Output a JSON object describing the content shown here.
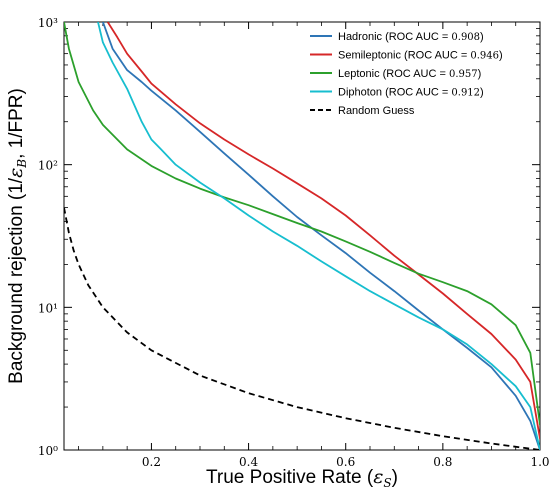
{
  "chart_data": {
    "type": "line",
    "xlabel": "True Positive Rate (εS)",
    "ylabel": "Background rejection (1/εB, 1/FPR)",
    "x_scale": "linear",
    "y_scale": "log",
    "xlim": [
      0.02,
      1.0
    ],
    "ylim": [
      1,
      1000
    ],
    "x_ticks": [
      0.2,
      0.4,
      0.6,
      0.8,
      1.0
    ],
    "x_tick_labels": [
      "0.2",
      "0.4",
      "0.6",
      "0.8",
      "1.0"
    ],
    "y_ticks": [
      1,
      10,
      100,
      1000
    ],
    "y_tick_labels": [
      "10⁰",
      "10¹",
      "10²",
      "10³"
    ],
    "grid": false,
    "legend_position": "top-right",
    "series": [
      {
        "name": "Hadronic (ROC AUC = 0.908)",
        "color": "#2e75b6",
        "style": "solid",
        "x": [
          0.1,
          0.12,
          0.15,
          0.18,
          0.2,
          0.25,
          0.3,
          0.35,
          0.4,
          0.45,
          0.5,
          0.55,
          0.6,
          0.65,
          0.7,
          0.75,
          0.8,
          0.85,
          0.9,
          0.95,
          0.98,
          1.0
        ],
        "y": [
          1000,
          650,
          460,
          380,
          330,
          240,
          170,
          120,
          85,
          60,
          43,
          32,
          24,
          17.5,
          13,
          9.5,
          7,
          5.2,
          3.8,
          2.4,
          1.6,
          1.0
        ]
      },
      {
        "name": "Semileptonic (ROC AUC = 0.946)",
        "color": "#d62728",
        "style": "solid",
        "x": [
          0.11,
          0.13,
          0.15,
          0.18,
          0.2,
          0.25,
          0.3,
          0.35,
          0.4,
          0.45,
          0.5,
          0.55,
          0.6,
          0.65,
          0.7,
          0.75,
          0.8,
          0.85,
          0.9,
          0.95,
          0.98,
          1.0
        ],
        "y": [
          1000,
          780,
          600,
          450,
          370,
          265,
          195,
          150,
          118,
          94,
          74,
          58,
          44,
          32,
          23,
          17,
          12.5,
          9,
          6.5,
          4.3,
          3.0,
          1.2
        ]
      },
      {
        "name": "Leptonic (ROC AUC = 0.957)",
        "color": "#2ca02c",
        "style": "solid",
        "x": [
          0.02,
          0.03,
          0.05,
          0.08,
          0.1,
          0.15,
          0.2,
          0.25,
          0.3,
          0.35,
          0.4,
          0.45,
          0.5,
          0.55,
          0.6,
          0.65,
          0.7,
          0.75,
          0.8,
          0.85,
          0.9,
          0.95,
          0.98,
          1.0
        ],
        "y": [
          1000,
          650,
          380,
          240,
          190,
          128,
          98,
          80,
          68,
          59,
          52,
          45,
          39,
          34,
          29,
          24.5,
          20.5,
          17.2,
          15,
          13,
          10.5,
          7.5,
          4.8,
          1.5
        ]
      },
      {
        "name": "Diphoton (ROC AUC = 0.912)",
        "color": "#17becf",
        "style": "solid",
        "x": [
          0.09,
          0.1,
          0.12,
          0.15,
          0.18,
          0.2,
          0.22,
          0.25,
          0.3,
          0.35,
          0.4,
          0.45,
          0.5,
          0.55,
          0.6,
          0.65,
          0.7,
          0.75,
          0.8,
          0.85,
          0.9,
          0.95,
          0.98,
          1.0
        ],
        "y": [
          1000,
          720,
          520,
          340,
          200,
          150,
          128,
          100,
          75,
          58,
          44,
          34,
          27,
          21,
          16.5,
          13,
          10.5,
          8.5,
          7,
          5.5,
          4.0,
          2.8,
          2.0,
          1.0
        ]
      },
      {
        "name": "Random Guess",
        "color": "#000000",
        "style": "dashed",
        "x": [
          0.02,
          0.03,
          0.04,
          0.05,
          0.07,
          0.1,
          0.15,
          0.2,
          0.3,
          0.4,
          0.5,
          0.6,
          0.7,
          0.8,
          0.9,
          1.0
        ],
        "y": [
          50,
          33.3,
          25,
          20,
          14.3,
          10,
          6.67,
          5,
          3.33,
          2.5,
          2,
          1.67,
          1.43,
          1.25,
          1.11,
          1.0
        ]
      }
    ],
    "legend_labels": [
      {
        "prefix": "Hadronic (ROC AUC = ",
        "value": "0.908",
        "suffix": ")"
      },
      {
        "prefix": "Semileptonic (ROC AUC = ",
        "value": "0.946",
        "suffix": ")"
      },
      {
        "prefix": "Leptonic (ROC AUC = ",
        "value": "0.957",
        "suffix": ")"
      },
      {
        "prefix": "Diphoton (ROC AUC = ",
        "value": "0.912",
        "suffix": ")"
      },
      {
        "prefix": "Random Guess",
        "value": "",
        "suffix": ""
      }
    ]
  }
}
